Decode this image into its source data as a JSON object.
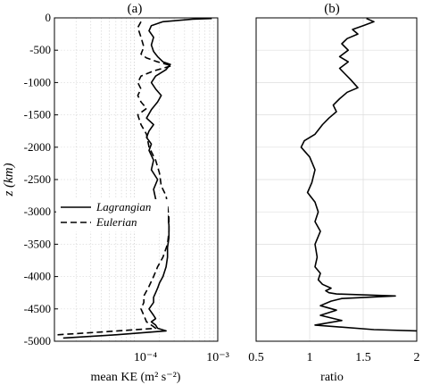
{
  "chart_data": [
    {
      "panel_label": "(a)",
      "type": "line",
      "xlabel": "mean KE (m² s⁻²)",
      "ylabel": "z (km)",
      "x_scale": "log",
      "xlim": [
        1.1e-05,
        0.001
      ],
      "ylim": [
        -5000,
        0
      ],
      "x_tick_labels": [
        "10⁻⁴",
        "10⁻³"
      ],
      "y_ticks": [
        0,
        -500,
        -1000,
        -1500,
        -2000,
        -2500,
        -3000,
        -3500,
        -4000,
        -4500,
        -5000
      ],
      "y_tick_labels": [
        "0",
        "-500",
        "-1000",
        "-1500",
        "-2000",
        "-2500",
        "-3000",
        "-3500",
        "-4000",
        "-4500",
        "-5000"
      ],
      "grid": true,
      "legend": {
        "placement": "middle-left",
        "entries": [
          "Lagrangian",
          "Eulerian"
        ]
      },
      "series": [
        {
          "name": "Lagrangian",
          "style": "solid",
          "x": [
            0.00085,
            0.0005,
            0.00022,
            0.00016,
            0.00015,
            0.00017,
            0.00016,
            0.00017,
            0.00019,
            0.00022,
            0.00027,
            0.00024,
            0.00018,
            0.00016,
            0.00018,
            0.00021,
            0.00019,
            0.00016,
            0.00014,
            0.00017,
            0.00015,
            0.00014,
            0.00016,
            0.00015,
            0.00017,
            0.00016,
            0.00019,
            0.00017,
            0.00018,
            0.0002,
            0.00022,
            0.00025,
            0.00026,
            0.00026,
            0.00025,
            0.00025,
            0.00024,
            0.00022,
            0.0002,
            0.00019,
            0.00018,
            0.00017,
            0.00017,
            0.00015,
            0.00017,
            0.00018,
            0.00016,
            0.00018,
            0.00019,
            0.00024,
            6e-05,
            1.4e-05
          ],
          "y": [
            -10,
            -20,
            -60,
            -120,
            -200,
            -300,
            -420,
            -520,
            -600,
            -680,
            -720,
            -800,
            -900,
            -1000,
            -1100,
            -1200,
            -1300,
            -1420,
            -1550,
            -1650,
            -1750,
            -1850,
            -1950,
            -2050,
            -2200,
            -2350,
            -2500,
            -2650,
            -2800,
            -2900,
            -2980,
            -3050,
            -3200,
            -3400,
            -3550,
            -3700,
            -3850,
            -4000,
            -4100,
            -4180,
            -4250,
            -4320,
            -4400,
            -4500,
            -4600,
            -4650,
            -4700,
            -4750,
            -4800,
            -4840,
            -4900,
            -4950
          ]
        },
        {
          "name": "Eulerian",
          "style": "dashed",
          "x": [
            0.00012,
            0.00011,
            0.00012,
            0.00013,
            0.00012,
            0.00014,
            0.00019,
            0.00028,
            0.00017,
            0.00012,
            0.00011,
            0.00012,
            0.00011,
            0.00012,
            0.00014,
            0.00011,
            0.00012,
            0.00014,
            0.00015,
            0.00018,
            0.0002,
            0.00021,
            0.00024,
            0.00025,
            0.00026,
            0.00026,
            0.00025,
            0.00022,
            0.00019,
            0.00017,
            0.00015,
            0.00013,
            0.00013,
            0.00012,
            0.00013,
            0.00014,
            0.00016,
            0.00018,
            5e-05,
            1.2e-05
          ],
          "y": [
            -60,
            -150,
            -300,
            -450,
            -560,
            -620,
            -680,
            -740,
            -820,
            -900,
            -1000,
            -1100,
            -1200,
            -1300,
            -1400,
            -1500,
            -1650,
            -1800,
            -2000,
            -2200,
            -2400,
            -2600,
            -2750,
            -2900,
            -3100,
            -3300,
            -3500,
            -3700,
            -3850,
            -4000,
            -4150,
            -4300,
            -4400,
            -4500,
            -4600,
            -4700,
            -4750,
            -4800,
            -4850,
            -4900
          ]
        }
      ]
    },
    {
      "panel_label": "(b)",
      "type": "line",
      "xlabel": "ratio",
      "ylabel": "",
      "xlim": [
        0.5,
        2
      ],
      "ylim": [
        -5000,
        0
      ],
      "x_ticks": [
        0.5,
        1,
        1.5,
        2
      ],
      "x_tick_labels": [
        "0.5",
        "1",
        "1.5",
        "2"
      ],
      "grid": true,
      "series": [
        {
          "style": "solid",
          "x": [
            1.53,
            1.6,
            1.5,
            1.4,
            1.45,
            1.35,
            1.3,
            1.36,
            1.28,
            1.36,
            1.28,
            1.32,
            1.38,
            1.45,
            1.35,
            1.28,
            1.22,
            1.25,
            1.18,
            1.12,
            1.05,
            0.95,
            0.92,
            1.0,
            1.05,
            1.02,
            0.98,
            1.05,
            1.08,
            1.05,
            1.1,
            1.05,
            1.07,
            1.05,
            1.1,
            1.08,
            1.12,
            1.2,
            1.15,
            1.18,
            1.25,
            1.8,
            1.3,
            1.2,
            1.1,
            1.25,
            1.1,
            1.3,
            1.05,
            1.6,
            2.0
          ],
          "y": [
            -10,
            -60,
            -120,
            -180,
            -250,
            -320,
            -400,
            -500,
            -600,
            -680,
            -780,
            -850,
            -950,
            -1080,
            -1150,
            -1250,
            -1350,
            -1450,
            -1550,
            -1650,
            -1800,
            -1900,
            -2000,
            -2150,
            -2350,
            -2550,
            -2700,
            -2850,
            -3000,
            -3150,
            -3300,
            -3500,
            -3700,
            -3850,
            -3950,
            -4050,
            -4120,
            -4180,
            -4220,
            -4250,
            -4270,
            -4300,
            -4340,
            -4380,
            -4450,
            -4520,
            -4600,
            -4680,
            -4750,
            -4820,
            -4840
          ]
        }
      ]
    }
  ]
}
